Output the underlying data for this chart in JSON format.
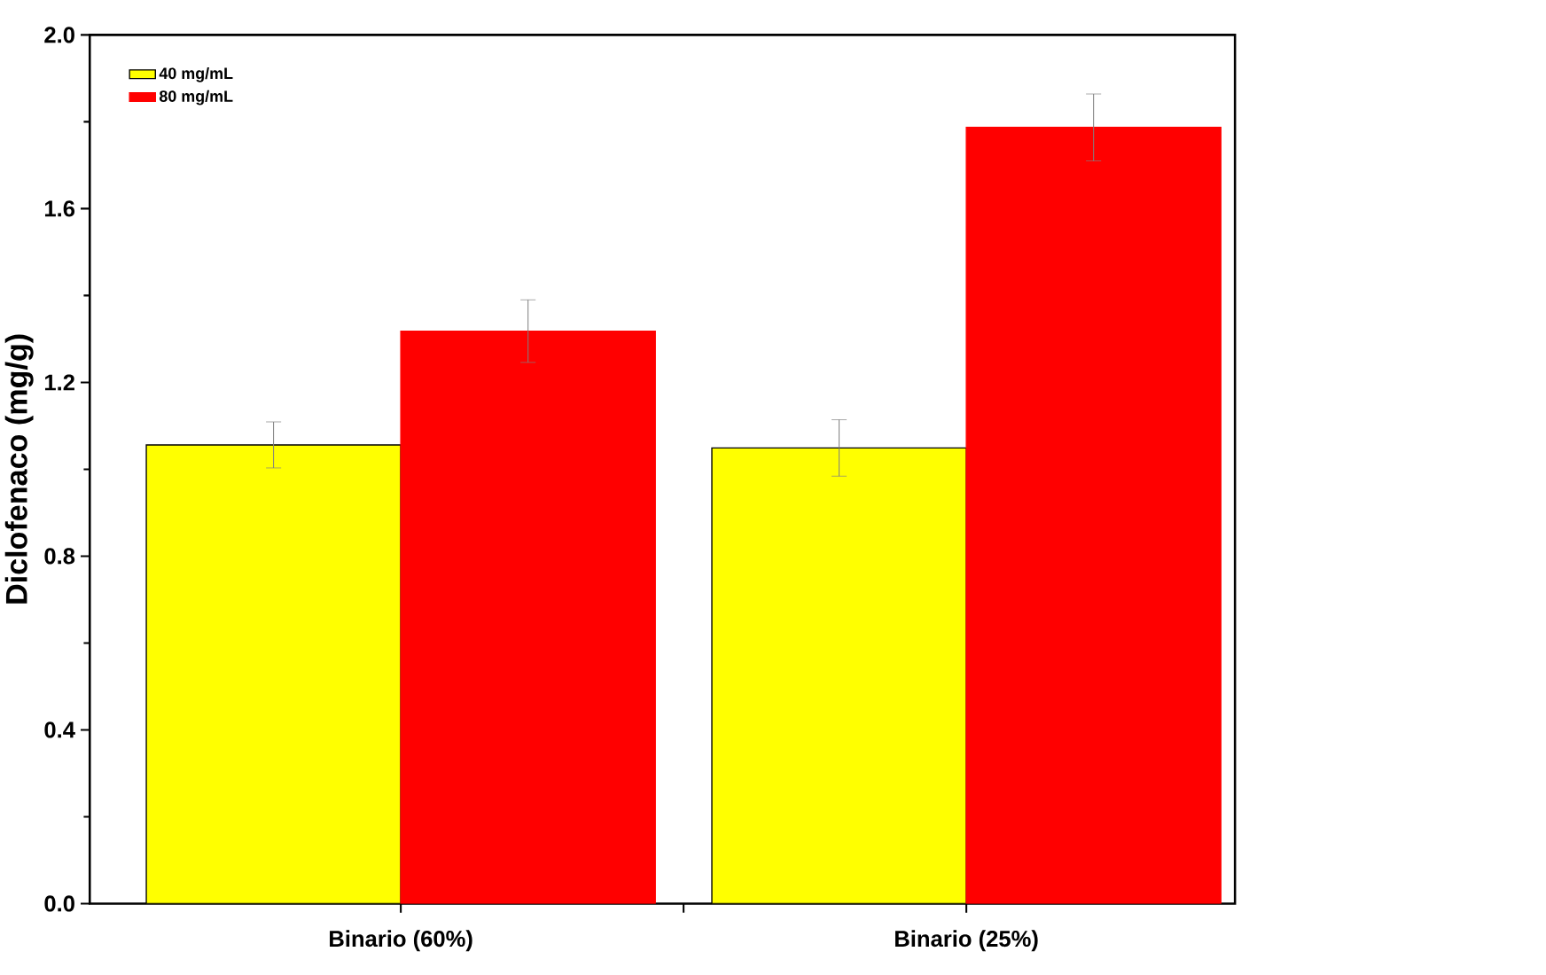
{
  "chart_data": {
    "type": "bar",
    "ylabel": "Diclofenaco (mg/g)",
    "categories": [
      "Binario (60%)",
      "Binario (25%)"
    ],
    "series": [
      {
        "name": "40 mg/mL",
        "color": "#ffff00",
        "values": [
          1.056,
          1.049
        ],
        "errors": [
          0.053,
          0.065
        ]
      },
      {
        "name": "80 mg/mL",
        "color": "#ff0000",
        "values": [
          1.318,
          1.787
        ],
        "errors": [
          0.072,
          0.077
        ]
      }
    ],
    "ylim": [
      0,
      2.0
    ],
    "yticks": [
      {
        "value": 0,
        "label": "0.0"
      },
      {
        "value": 0.4,
        "label": "0.4"
      },
      {
        "value": 0.8,
        "label": "0.8"
      },
      {
        "value": 1.2,
        "label": "1.2"
      },
      {
        "value": 1.6,
        "label": "1.6"
      },
      {
        "value": 2.0,
        "label": "2.0"
      }
    ],
    "legend": "top left"
  }
}
